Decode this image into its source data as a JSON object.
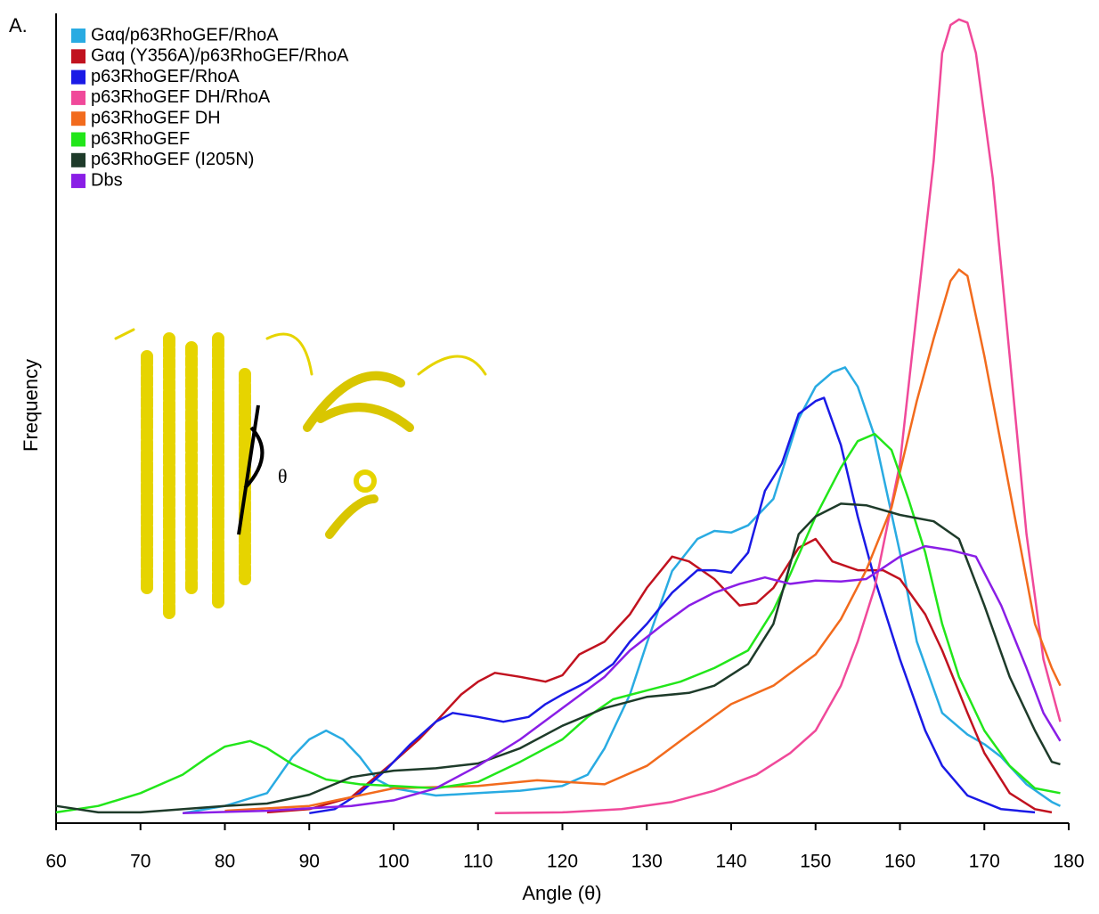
{
  "chart_data": {
    "type": "line",
    "panel_label": "A.",
    "xlabel": "Angle (θ)",
    "ylabel": "Frequency",
    "inset_label": "θ",
    "xlim": [
      60,
      180
    ],
    "xticks": [
      60,
      70,
      80,
      90,
      100,
      110,
      120,
      130,
      140,
      150,
      160,
      170,
      180
    ],
    "ylim": [
      0,
      100
    ],
    "series": [
      {
        "name": "Gαq/p63RhoGEF/RhoA",
        "color": "#29abe2",
        "x": [
          75,
          80,
          85,
          88,
          90,
          92,
          94,
          96,
          98,
          100,
          105,
          110,
          115,
          120,
          123,
          125,
          128,
          130,
          133,
          136,
          138,
          140,
          142,
          145,
          148,
          150,
          152,
          153.5,
          155,
          157,
          160,
          162,
          165,
          168,
          170,
          172,
          175,
          178,
          179
        ],
        "values": [
          0.8,
          1.7,
          3.3,
          7.8,
          10,
          11.1,
          10,
          7.8,
          5,
          3.9,
          3,
          3.3,
          3.6,
          4.2,
          5.6,
          8.9,
          15.6,
          22,
          31,
          35,
          36,
          35.8,
          36.7,
          40,
          50,
          54,
          55.8,
          56.4,
          54,
          47.8,
          33.3,
          22.2,
          13.3,
          10.6,
          9.4,
          7.8,
          4.4,
          2.2,
          1.7
        ]
      },
      {
        "name": "Gαq (Y356A)/p63RhoGEF/RhoA",
        "color": "#c1121f",
        "x": [
          85,
          90,
          95,
          100,
          103,
          105,
          108,
          110,
          112,
          115,
          118,
          120,
          122,
          125,
          128,
          130,
          133,
          135,
          138,
          141,
          143,
          145,
          148,
          150,
          152,
          155,
          158,
          160,
          163,
          165,
          168,
          170,
          173,
          176,
          178
        ],
        "values": [
          0.9,
          1.3,
          2.8,
          7.2,
          10,
          12.2,
          15.6,
          17.2,
          18.3,
          17.8,
          17.2,
          18,
          20.6,
          22.2,
          25.6,
          28.9,
          32.8,
          32.2,
          30,
          26.7,
          27,
          28.9,
          33.9,
          35,
          32.2,
          31.1,
          31.1,
          30,
          25.6,
          21.1,
          13.3,
          8.3,
          3.3,
          1.3,
          0.9
        ]
      },
      {
        "name": "p63RhoGEF/RhoA",
        "color": "#1a1ae6",
        "x": [
          90,
          93,
          96,
          99,
          102,
          105,
          107,
          110,
          113,
          116,
          118,
          120,
          123,
          126,
          128,
          130,
          133,
          136,
          138,
          140,
          142,
          144,
          146,
          148,
          150,
          151,
          153,
          155,
          157,
          160,
          163,
          165,
          168,
          172,
          176
        ],
        "values": [
          0.8,
          1.3,
          3.3,
          6.1,
          9.4,
          12.2,
          13.3,
          12.8,
          12.2,
          12.8,
          14.4,
          15.6,
          17.2,
          19.4,
          22.2,
          24.4,
          28.3,
          31.1,
          31.1,
          30.8,
          33.3,
          41,
          44.4,
          50.6,
          52.2,
          52.6,
          46.7,
          37.8,
          30,
          20,
          11.1,
          6.7,
          3,
          1.3,
          0.9
        ]
      },
      {
        "name": "p63RhoGEF DH/RhoA",
        "color": "#f0499a",
        "x": [
          112,
          120,
          127,
          133,
          138,
          143,
          147,
          150,
          153,
          155,
          157,
          160,
          162,
          164,
          165,
          166,
          167,
          168,
          169,
          171,
          173,
          175,
          177,
          179
        ],
        "values": [
          0.8,
          0.9,
          1.3,
          2.2,
          3.6,
          5.6,
          8.3,
          11.1,
          16.7,
          22.2,
          28.9,
          44.4,
          63.3,
          82.2,
          95.6,
          99.1,
          99.8,
          99.4,
          95.6,
          80,
          57.8,
          35.6,
          20,
          12.2
        ]
      },
      {
        "name": "p63RhoGEF DH",
        "color": "#f26b1d",
        "x": [
          80,
          90,
          100,
          110,
          117,
          125,
          130,
          135,
          140,
          145,
          150,
          153,
          156,
          159,
          162,
          164,
          166,
          167,
          168,
          170,
          172,
          174,
          176,
          178,
          179
        ],
        "values": [
          1.1,
          1.7,
          3.9,
          4.2,
          4.9,
          4.4,
          6.7,
          10.6,
          14.4,
          16.7,
          20.6,
          25,
          31.1,
          38.9,
          52.2,
          60,
          67.2,
          68.6,
          67.8,
          57.8,
          46.7,
          35.6,
          24.4,
          18.9,
          16.7
        ]
      },
      {
        "name": "p63RhoGEF",
        "color": "#22e61a",
        "x": [
          60,
          65,
          70,
          75,
          78,
          80,
          83,
          85,
          88,
          92,
          96,
          100,
          105,
          110,
          115,
          120,
          123,
          126,
          130,
          134,
          138,
          142,
          145,
          147,
          150,
          153,
          155,
          157,
          159,
          161,
          163,
          165,
          167,
          170,
          173,
          176,
          179
        ],
        "values": [
          0.9,
          1.7,
          3.3,
          5.6,
          7.8,
          9.1,
          9.8,
          8.9,
          6.9,
          5,
          4.4,
          4.2,
          3.9,
          4.7,
          7.2,
          10,
          12.8,
          15,
          16.1,
          17.2,
          18.9,
          21.1,
          26.1,
          30.6,
          37.8,
          43.9,
          47.2,
          48.1,
          46.1,
          40,
          33.3,
          24.4,
          17.8,
          11.1,
          6.7,
          3.9,
          3.3
        ]
      },
      {
        "name": "p63RhoGEF (I205N)",
        "color": "#1e3b2a",
        "x": [
          60,
          65,
          70,
          80,
          85,
          90,
          95,
          100,
          105,
          110,
          115,
          120,
          125,
          130,
          135,
          138,
          142,
          145,
          148,
          150,
          153,
          156,
          160,
          164,
          167,
          170,
          173,
          176,
          178,
          179
        ],
        "values": [
          1.7,
          0.9,
          0.9,
          1.7,
          2,
          3.1,
          5.3,
          6.1,
          6.4,
          7,
          8.9,
          11.7,
          13.9,
          15.3,
          15.8,
          16.7,
          19.4,
          24.4,
          35.6,
          37.8,
          39.4,
          39.2,
          38,
          37.2,
          35,
          26.7,
          17.8,
          11.1,
          7.2,
          6.9
        ]
      },
      {
        "name": "Dbs",
        "color": "#8a1ee6",
        "x": [
          75,
          85,
          95,
          100,
          105,
          110,
          115,
          120,
          125,
          128,
          132,
          135,
          138,
          141,
          144,
          147,
          150,
          153,
          156,
          160,
          163,
          166,
          169,
          172,
          175,
          177,
          179
        ],
        "values": [
          0.8,
          1.1,
          1.7,
          2.4,
          3.9,
          6.7,
          10,
          13.9,
          17.8,
          21.1,
          24.4,
          26.7,
          28.3,
          29.4,
          30.2,
          29.4,
          29.8,
          29.7,
          30,
          32.8,
          34.1,
          33.6,
          32.8,
          26.7,
          18.9,
          13.3,
          9.8
        ]
      }
    ]
  }
}
